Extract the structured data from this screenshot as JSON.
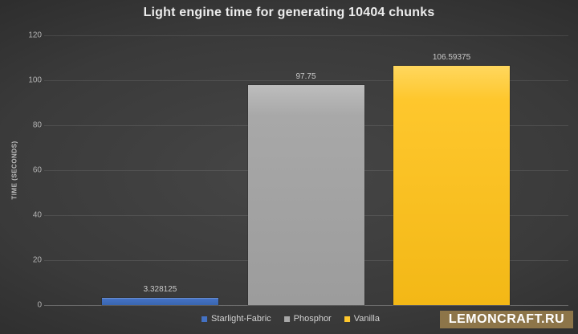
{
  "watermark": {
    "text": "LEMONCRAFT.RU",
    "background_color": "#8d7549",
    "text_color": "#ffffff"
  },
  "chart_data": {
    "type": "bar",
    "title": "Light engine time for generating 10404 chunks",
    "xlabel": "",
    "ylabel": "TIME (SECONDS)",
    "categories": [
      "Starlight-Fabric",
      "Phosphor",
      "Vanilla"
    ],
    "values": [
      3.328125,
      97.75,
      106.59375
    ],
    "value_labels": [
      "3.328125",
      "97.75",
      "106.59375"
    ],
    "series_colors": [
      {
        "top": "#7f9fd8",
        "main": "#4472c4",
        "bottom": "#3a66b0"
      },
      {
        "top": "#bdbdbd",
        "main": "#a8a8a8",
        "bottom": "#9c9c9c"
      },
      {
        "top": "#ffd75e",
        "main": "#fec72d",
        "bottom": "#f3b816"
      }
    ],
    "ylim": [
      0,
      120
    ],
    "ytick_step": 20,
    "yticks": [
      0,
      20,
      40,
      60,
      80,
      100,
      120
    ],
    "grid": true,
    "legend_position": "bottom",
    "background": {
      "center": "#454545",
      "edge": "#242424"
    }
  }
}
